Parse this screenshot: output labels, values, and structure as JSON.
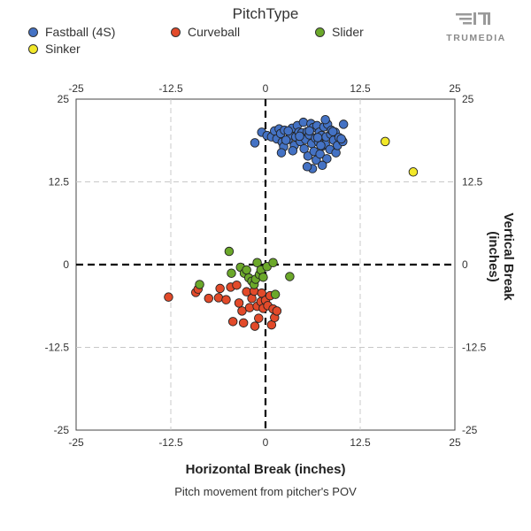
{
  "legend": {
    "title": "PitchType",
    "items": [
      {
        "name": "Fastball (4S)",
        "color": "#4472C4"
      },
      {
        "name": "Curveball",
        "color": "#E24A2A"
      },
      {
        "name": "Slider",
        "color": "#6BA82A"
      },
      {
        "name": "Sinker",
        "color": "#F2E829"
      }
    ]
  },
  "brand": {
    "name": "TRUMEDIA"
  },
  "caption": "Pitch movement from pitcher's POV",
  "chart_data": {
    "type": "scatter",
    "title": "",
    "xlabel": "Horizontal Break (inches)",
    "ylabel": "Vertical Break (inches)",
    "xlim": [
      -25,
      25
    ],
    "ylim": [
      -25,
      25
    ],
    "ticks": [
      -25,
      -12.5,
      0,
      12.5,
      25
    ],
    "tick_labels": [
      "-25",
      "-12.5",
      "0",
      "12.5",
      "25"
    ],
    "grid": true,
    "series": [
      {
        "name": "Fastball (4S)",
        "color": "#4472C4",
        "points": [
          [
            -0.5,
            20
          ],
          [
            0.2,
            19.5
          ],
          [
            0.8,
            19.3
          ],
          [
            1.2,
            20.2
          ],
          [
            1.5,
            19.0
          ],
          [
            1.8,
            20.5
          ],
          [
            2.0,
            19.8
          ],
          [
            2.2,
            18.5
          ],
          [
            2.5,
            20.3
          ],
          [
            2.4,
            17.8
          ],
          [
            2.1,
            16.9
          ],
          [
            3.0,
            18.9
          ],
          [
            3.3,
            19.6
          ],
          [
            3.5,
            20.6
          ],
          [
            3.8,
            18.0
          ],
          [
            3.6,
            17.2
          ],
          [
            4.0,
            19.3
          ],
          [
            4.2,
            21.0
          ],
          [
            4.4,
            20.0
          ],
          [
            4.6,
            18.6
          ],
          [
            4.8,
            19.9
          ],
          [
            5.0,
            21.5
          ],
          [
            5.1,
            17.5
          ],
          [
            5.3,
            18.9
          ],
          [
            5.5,
            20.1
          ],
          [
            5.6,
            16.4
          ],
          [
            5.8,
            19.6
          ],
          [
            6.0,
            21.3
          ],
          [
            6.1,
            18.3
          ],
          [
            6.3,
            20.7
          ],
          [
            6.4,
            17.1
          ],
          [
            6.6,
            19.1
          ],
          [
            6.7,
            15.8
          ],
          [
            6.8,
            21.0
          ],
          [
            7.0,
            18.5
          ],
          [
            7.1,
            20.0
          ],
          [
            7.2,
            16.7
          ],
          [
            7.4,
            19.5
          ],
          [
            7.5,
            17.9
          ],
          [
            7.7,
            20.8
          ],
          [
            7.9,
            18.2
          ],
          [
            8.0,
            19.3
          ],
          [
            8.1,
            16.0
          ],
          [
            8.2,
            21.2
          ],
          [
            8.5,
            17.4
          ],
          [
            8.6,
            19.7
          ],
          [
            8.7,
            20.3
          ],
          [
            9.0,
            18.8
          ],
          [
            9.2,
            20.0
          ],
          [
            9.3,
            16.9
          ],
          [
            9.5,
            18.0
          ],
          [
            9.7,
            19.2
          ],
          [
            10.2,
            18.6
          ],
          [
            10.3,
            21.2
          ],
          [
            6.2,
            14.5
          ],
          [
            7.5,
            15.0
          ],
          [
            7.9,
            21.9
          ],
          [
            5.5,
            14.8
          ],
          [
            3.0,
            20.2
          ],
          [
            4.5,
            19.4
          ],
          [
            6.9,
            19.2
          ],
          [
            8.9,
            20.1
          ],
          [
            10.0,
            19.0
          ],
          [
            -1.4,
            18.4
          ],
          [
            2.7,
            18.8
          ],
          [
            5.8,
            20.2
          ],
          [
            7.3,
            18.0
          ]
        ]
      },
      {
        "name": "Curveball",
        "color": "#E24A2A",
        "points": [
          [
            -12.8,
            -4.9
          ],
          [
            -9.2,
            -4.2
          ],
          [
            -8.9,
            -3.7
          ],
          [
            -7.5,
            -5.1
          ],
          [
            -6.2,
            -5.0
          ],
          [
            -6.0,
            -3.6
          ],
          [
            -5.2,
            -5.3
          ],
          [
            -4.6,
            -3.4
          ],
          [
            -4.3,
            -8.6
          ],
          [
            -3.8,
            -3.1
          ],
          [
            -3.5,
            -5.8
          ],
          [
            -3.1,
            -7.0
          ],
          [
            -2.9,
            -8.8
          ],
          [
            -2.5,
            -4.1
          ],
          [
            -2.1,
            -6.5
          ],
          [
            -1.8,
            -5.1
          ],
          [
            -1.5,
            -4.0
          ],
          [
            -1.4,
            -9.3
          ],
          [
            -1.1,
            -6.3
          ],
          [
            -0.9,
            -8.1
          ],
          [
            -0.6,
            -5.6
          ],
          [
            -0.5,
            -4.3
          ],
          [
            -0.3,
            -6.6
          ],
          [
            0.0,
            -5.4
          ],
          [
            0.3,
            -6.2
          ],
          [
            0.6,
            -4.7
          ],
          [
            0.8,
            -9.1
          ],
          [
            1.0,
            -6.7
          ],
          [
            1.2,
            -8.0
          ],
          [
            1.5,
            -7.0
          ]
        ]
      },
      {
        "name": "Slider",
        "color": "#6BA82A",
        "points": [
          [
            -4.8,
            2.0
          ],
          [
            -3.3,
            -0.4
          ],
          [
            -2.8,
            -1.3
          ],
          [
            -2.5,
            -0.8
          ],
          [
            -2.2,
            -2.0
          ],
          [
            -1.8,
            -2.5
          ],
          [
            -1.5,
            -3.0
          ],
          [
            -1.3,
            -2.2
          ],
          [
            -1.1,
            0.3
          ],
          [
            -0.8,
            -1.5
          ],
          [
            -0.6,
            -0.8
          ],
          [
            0.2,
            -0.3
          ],
          [
            1.0,
            0.3
          ],
          [
            1.3,
            -4.5
          ],
          [
            3.2,
            -1.8
          ],
          [
            -8.7,
            -3.0
          ],
          [
            -4.5,
            -1.3
          ],
          [
            -0.3,
            -1.9
          ]
        ]
      },
      {
        "name": "Sinker",
        "color": "#F2E829",
        "points": [
          [
            15.8,
            18.6
          ],
          [
            19.5,
            14.0
          ]
        ]
      }
    ]
  }
}
